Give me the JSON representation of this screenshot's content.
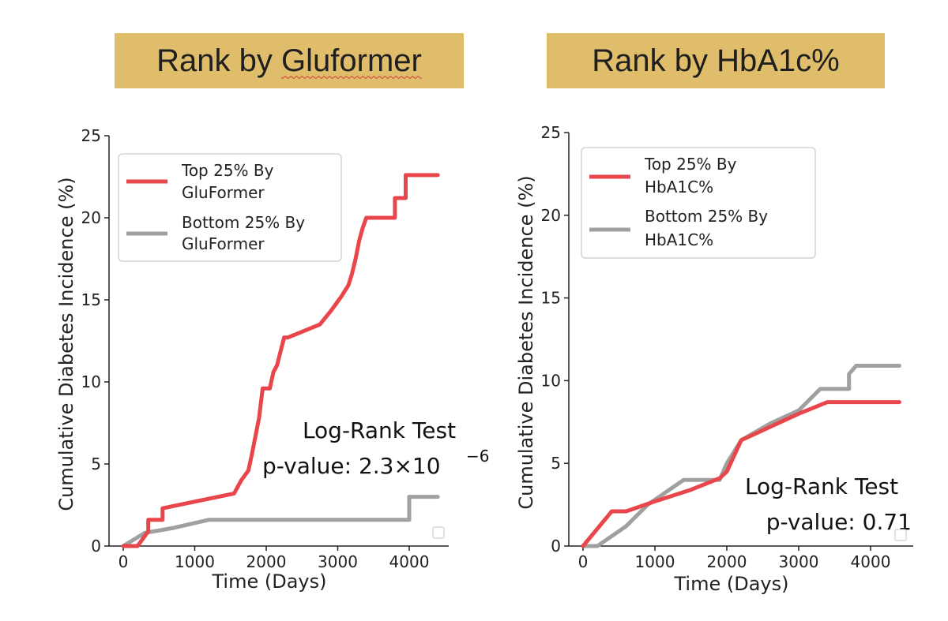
{
  "banners": {
    "left": {
      "prefix": "Rank by ",
      "highlight": "Gluformer"
    },
    "right": {
      "text": "Rank by HbA1c%"
    }
  },
  "colors": {
    "banner": "#dfbd6a",
    "top": "#e8464a",
    "bottom": "#a0a0a0"
  },
  "chart_data": [
    {
      "type": "line",
      "xlabel": "Time (Days)",
      "ylabel": "Cumulative Diabetes Incidence (%)",
      "xlim": [
        -200,
        4600
      ],
      "ylim": [
        0,
        25
      ],
      "xticks": [
        0,
        1000,
        2000,
        3000,
        4000
      ],
      "yticks": [
        0,
        5,
        10,
        15,
        20,
        25
      ],
      "legend_position": "upper-left",
      "series": [
        {
          "name": "Top 25% By GluFormer",
          "color": "#e8464a",
          "x": [
            0,
            200,
            350,
            350,
            450,
            550,
            550,
            1550,
            1650,
            1750,
            1800,
            1900,
            1950,
            2050,
            2100,
            2150,
            2250,
            2300,
            2750,
            2900,
            3050,
            3150,
            3200,
            3250,
            3300,
            3350,
            3400,
            3500,
            3550,
            3800,
            3800,
            3950,
            3950,
            4400
          ],
          "y": [
            0,
            0,
            0.9,
            1.6,
            1.6,
            1.6,
            2.3,
            3.2,
            4.0,
            4.6,
            5.6,
            7.8,
            9.6,
            9.6,
            10.6,
            11.0,
            12.7,
            12.7,
            13.5,
            14.3,
            15.2,
            15.9,
            16.6,
            17.5,
            18.6,
            19.4,
            20.0,
            20.0,
            20.0,
            20.0,
            21.2,
            21.2,
            22.6,
            22.6
          ]
        },
        {
          "name": "Bottom 25% By GluFormer",
          "color": "#a0a0a0",
          "x": [
            0,
            300,
            700,
            1200,
            4000,
            4000,
            4400
          ],
          "y": [
            0,
            0.8,
            1.1,
            1.6,
            1.6,
            3.0,
            3.0
          ]
        }
      ],
      "annotations": [
        "Log-Rank Test",
        "p-value: 2.3×10",
        "−6"
      ]
    },
    {
      "type": "line",
      "xlabel": "Time (Days)",
      "ylabel": "Cumulative Diabetes Incidence (%)",
      "xlim": [
        -200,
        4600
      ],
      "ylim": [
        0,
        25
      ],
      "xticks": [
        0,
        1000,
        2000,
        3000,
        4000
      ],
      "yticks": [
        0,
        5,
        10,
        15,
        20,
        25
      ],
      "legend_position": "upper-left",
      "series": [
        {
          "name": "Top 25% By HbA1C%",
          "color": "#e8464a",
          "x": [
            0,
            400,
            600,
            1000,
            1500,
            1900,
            2000,
            2200,
            2600,
            3000,
            3400,
            4400
          ],
          "y": [
            0,
            2.1,
            2.1,
            2.7,
            3.4,
            4.1,
            4.5,
            6.4,
            7.2,
            8.0,
            8.7,
            8.7
          ],
          "label": ""
        },
        {
          "name": "Bottom 25% By HbA1C%",
          "color": "#a0a0a0",
          "x": [
            0,
            200,
            600,
            900,
            1400,
            1900,
            2000,
            2200,
            2600,
            3000,
            3300,
            3700,
            3700,
            3800,
            4400
          ],
          "y": [
            0,
            0,
            1.2,
            2.5,
            4.0,
            4.0,
            5.0,
            6.4,
            7.4,
            8.2,
            9.5,
            9.5,
            10.4,
            10.9,
            10.9
          ]
        }
      ],
      "annotations": [
        "Log-Rank Test",
        "p-value: 0.71"
      ]
    }
  ]
}
